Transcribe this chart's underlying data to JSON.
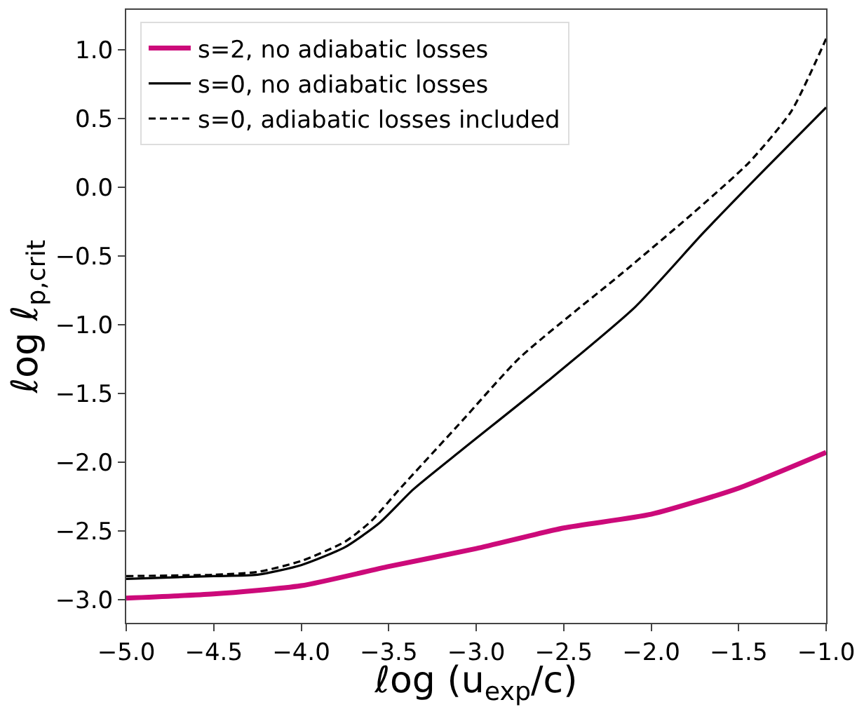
{
  "chart_data": {
    "type": "line",
    "xlabel": "ℓog (u$_{exp}$/c)",
    "ylabel": "ℓog ℓ$_{p,crit}$",
    "xlim": [
      -5.0,
      -1.0
    ],
    "xticks": [
      {
        "value": -5,
        "label": "−5.0"
      },
      {
        "value": -4.5,
        "label": "−4.5"
      },
      {
        "value": -4,
        "label": "−4.0"
      },
      {
        "value": -3.5,
        "label": "−3.5"
      },
      {
        "value": -3,
        "label": "−3.0"
      },
      {
        "value": -2.5,
        "label": "−2.5"
      },
      {
        "value": -2,
        "label": "−2.0"
      },
      {
        "value": -1.5,
        "label": "−1.5"
      },
      {
        "value": -1,
        "label": "−1.0"
      }
    ],
    "ylim": [
      -3.17,
      1.29
    ],
    "yticks": [
      {
        "value": -3,
        "label": "−3.0"
      },
      {
        "value": -2.5,
        "label": "−2.5"
      },
      {
        "value": -2,
        "label": "−2.0"
      },
      {
        "value": -1.5,
        "label": "−1.5"
      },
      {
        "value": -1,
        "label": "−1.0"
      },
      {
        "value": -0.5,
        "label": "−0.5"
      },
      {
        "value": 0,
        "label": "0.0"
      },
      {
        "value": 0.5,
        "label": "0.5"
      },
      {
        "value": 1,
        "label": "1.0"
      }
    ],
    "legend": "top left",
    "marker": "none",
    "series": [
      {
        "name": "s=2, no adiabatic losses",
        "color": "#cc0a7a",
        "line_style": "solid",
        "x": [
          -5,
          -4.5,
          -4,
          -3.5,
          -3,
          -2.5,
          -2,
          -1.5,
          -1
        ],
        "values": [
          -2.99,
          -2.96,
          -2.9,
          -2.76,
          -2.63,
          -2.48,
          -2.38,
          -2.19,
          -1.93
        ]
      },
      {
        "name": "s=0, no adiabatic losses",
        "color": "#000000",
        "line_style": "solid",
        "x": [
          -5,
          -4.5,
          -4.25,
          -4,
          -3.75,
          -3.55,
          -3.36,
          -3.08,
          -2.59,
          -2.09,
          -1.7,
          -1.35,
          -1
        ],
        "values": [
          -2.85,
          -2.83,
          -2.82,
          -2.75,
          -2.62,
          -2.44,
          -2.2,
          -1.91,
          -1.41,
          -0.87,
          -0.33,
          0.13,
          0.58
        ]
      },
      {
        "name": "s=0, adiabatic losses included",
        "color": "#000000",
        "line_style": "dashed",
        "x": [
          -5,
          -4.5,
          -4.25,
          -4,
          -3.75,
          -3.6,
          -3.44,
          -3.08,
          -2.75,
          -2.16,
          -1.77,
          -1.44,
          -1.2,
          -1
        ],
        "values": [
          -2.83,
          -2.82,
          -2.8,
          -2.72,
          -2.58,
          -2.43,
          -2.2,
          -1.7,
          -1.24,
          -0.62,
          -0.2,
          0.18,
          0.55,
          1.08
        ]
      }
    ]
  }
}
